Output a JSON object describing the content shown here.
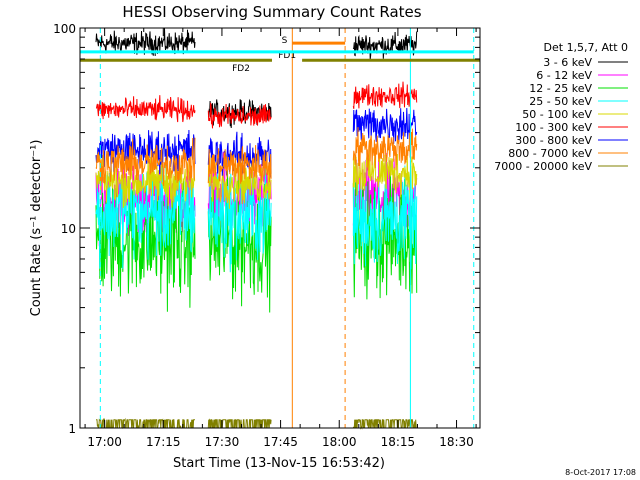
{
  "chart_data": {
    "type": "line",
    "title": "HESSI Observing Summary Count Rates",
    "xlabel": "Start Time (13-Nov-15 16:53:42)",
    "ylabel": "Count Rate (s⁻¹ detector⁻¹)",
    "x_range_minutes_of_day": [
      1013.7,
      1116
    ],
    "y_range": [
      1,
      100
    ],
    "y_scale": "log",
    "x_ticks": [
      {
        "label": "17:00",
        "min": 1020
      },
      {
        "label": "17:15",
        "min": 1035
      },
      {
        "label": "17:30",
        "min": 1050
      },
      {
        "label": "17:45",
        "min": 1065
      },
      {
        "label": "18:00",
        "min": 1080
      },
      {
        "label": "18:15",
        "min": 1095
      },
      {
        "label": "18:30",
        "min": 1110
      }
    ],
    "y_ticks": [
      {
        "label": "1",
        "value": 1
      },
      {
        "label": "10",
        "value": 10
      },
      {
        "label": "100",
        "value": 100
      }
    ],
    "legend": {
      "header": "Det 1,5,7, Att 0",
      "position": "right",
      "entries": [
        {
          "label": "3 - 6 keV",
          "color": "#000000"
        },
        {
          "label": "6 - 12 keV",
          "color": "#ff00ff"
        },
        {
          "label": "12 - 25 keV",
          "color": "#00e000"
        },
        {
          "label": "25 - 50 keV",
          "color": "#00ffff"
        },
        {
          "label": "50 - 100 keV",
          "color": "#d8d800"
        },
        {
          "label": "100 - 300 keV",
          "color": "#ff0000"
        },
        {
          "label": "300 - 800 keV",
          "color": "#0000ff"
        },
        {
          "label": "800 - 7000 keV",
          "color": "#ff8000"
        },
        {
          "label": "7000 - 20000 keV",
          "color": "#808000"
        }
      ]
    },
    "data_segments": [
      [
        1017.8,
        1043.2
      ],
      [
        1046.5,
        1062.6
      ],
      [
        1083.6,
        1099.8
      ]
    ],
    "series": [
      {
        "name": "3 - 6 keV",
        "color": "#000000",
        "levels": [
          84,
          38,
          82
        ],
        "noise": 0.04
      },
      {
        "name": "6 - 12 keV",
        "color": "#ff00ff",
        "levels": [
          14,
          14,
          14
        ],
        "noise": 0.13
      },
      {
        "name": "12 - 25 keV",
        "color": "#00e000",
        "levels": [
          8.6,
          8.6,
          9
        ],
        "noise": 0.2
      },
      {
        "name": "25 - 50 keV",
        "color": "#00ffff",
        "levels": [
          12,
          11.5,
          11
        ],
        "noise": 0.16
      },
      {
        "name": "50 - 100 keV",
        "color": "#d8d800",
        "levels": [
          17,
          17,
          19
        ],
        "noise": 0.08
      },
      {
        "name": "100 - 300 keV",
        "color": "#ff0000",
        "levels": [
          39,
          36,
          46
        ],
        "noise": 0.04
      },
      {
        "name": "300 - 800 keV",
        "color": "#0000ff",
        "levels": [
          24.5,
          23,
          33
        ],
        "noise": 0.07
      },
      {
        "name": "800 - 7000 keV",
        "color": "#ff8000",
        "levels": [
          21,
          20.5,
          25
        ],
        "noise": 0.07
      },
      {
        "name": "7000 - 20000 keV",
        "color": "#808000",
        "levels": [
          1.1,
          1.1,
          1.1
        ],
        "noise": 0.3
      }
    ],
    "annotations": [
      {
        "label": "FD1",
        "color": "#808000",
        "x_start": 1070.5,
        "x_end": 1116,
        "y": 69
      },
      {
        "label": "FD2",
        "color": "#808000",
        "x_start": 1013.7,
        "x_end": 1062.8,
        "y": 69
      },
      {
        "label": "S",
        "color": "#ff8000",
        "x_start": 1068,
        "x_end": 1081.5,
        "y": 84
      }
    ],
    "orbit_markers": [
      {
        "type": "saa",
        "color": "#ff8000",
        "start": 1068,
        "end": 1081.5
      },
      {
        "type": "night",
        "color": "#00ffff",
        "start": 1013.7,
        "end": 1116
      }
    ],
    "vertical_lines": [
      {
        "min": 1013.7,
        "color": "#00ffff",
        "style": "solid"
      },
      {
        "min": 1018.9,
        "color": "#00ffff",
        "style": "dashed"
      },
      {
        "min": 1068,
        "color": "#ff8000",
        "style": "solid"
      },
      {
        "min": 1081.5,
        "color": "#ff8000",
        "style": "dashed"
      },
      {
        "min": 1098.2,
        "color": "#00ffff",
        "style": "solid"
      },
      {
        "min": 1114.4,
        "color": "#00ffff",
        "style": "dashed"
      }
    ],
    "footer": "8-Oct-2017 17:08"
  }
}
